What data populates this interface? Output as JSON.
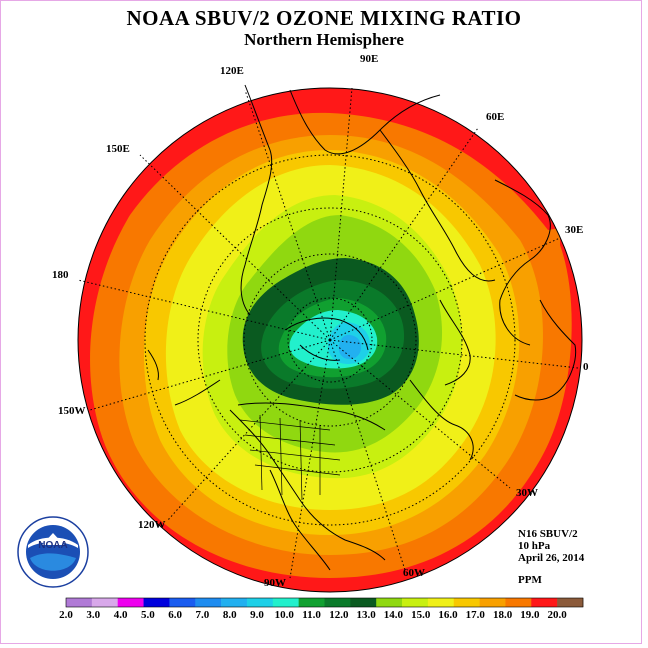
{
  "title": "NOAA SBUV/2 OZONE MIXING RATIO",
  "subtitle": "Northern Hemisphere",
  "longitude_labels": [
    "90E",
    "60E",
    "30E",
    "0",
    "30W",
    "60W",
    "90W",
    "120W",
    "150W",
    "180",
    "150E",
    "120E"
  ],
  "info": {
    "satellite": "N16 SBUV/2",
    "level": "10 hPa",
    "date": "April 26, 2014",
    "units": "PPM"
  },
  "logo": {
    "text": "NOAA"
  },
  "colorbar": {
    "ticks": [
      "2.0",
      "3.0",
      "4.0",
      "5.0",
      "6.0",
      "7.0",
      "8.0",
      "9.0",
      "10.0",
      "11.0",
      "12.0",
      "13.0",
      "14.0",
      "15.0",
      "16.0",
      "17.0",
      "18.0",
      "19.0",
      "20.0"
    ],
    "colors": [
      "#b07ad6",
      "#d8a8ea",
      "#ee00ee",
      "#0000dd",
      "#1a5cf0",
      "#1e8cf0",
      "#22b0f0",
      "#1ed0e8",
      "#22f0cc",
      "#10a030",
      "#0a7a2a",
      "#0a5a20",
      "#90d810",
      "#c8f010",
      "#f0f018",
      "#f8c800",
      "#f8a000",
      "#f87800",
      "#ff1818",
      "#8b5a3a"
    ]
  },
  "map_data": {
    "projection": "north polar stereographic",
    "ozone_field_contours_ppm": [
      20,
      19,
      18,
      17,
      16,
      15,
      14,
      13,
      12,
      11,
      10,
      9
    ]
  }
}
